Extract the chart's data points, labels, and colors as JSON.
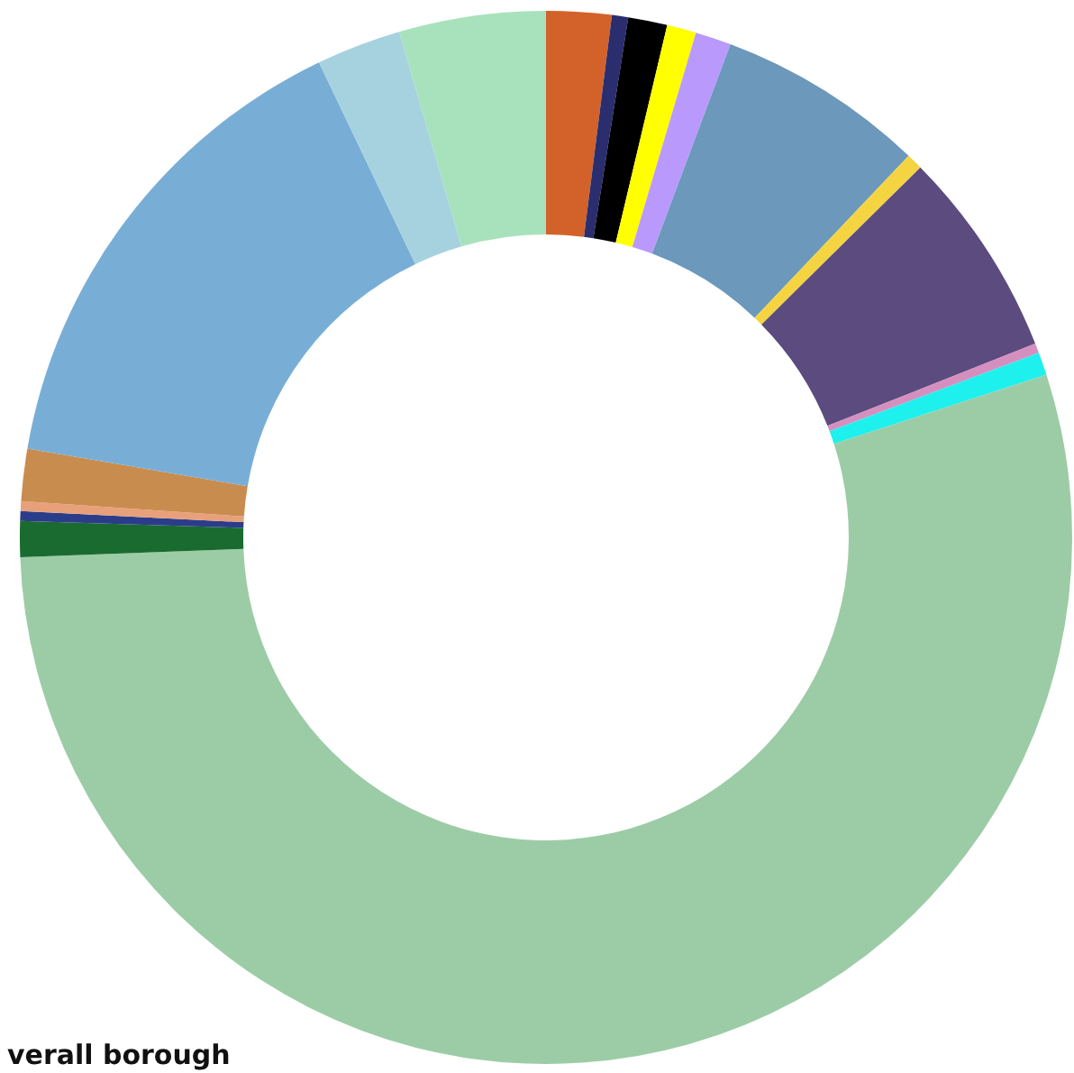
{
  "chart_data": {
    "type": "donut",
    "categories": [
      null,
      null,
      null,
      null,
      null,
      null,
      null,
      null,
      null,
      null,
      null,
      null,
      null,
      null,
      null,
      null,
      null,
      null
    ],
    "values": [
      2.0,
      0.5,
      1.2,
      0.9,
      1.1,
      6.4,
      0.5,
      6.4,
      0.3,
      0.7,
      54.4,
      1.1,
      0.3,
      0.3,
      1.6,
      15.2,
      2.6,
      4.5
    ],
    "colors": [
      "#d2622a",
      "#2a2d6e",
      "#000000",
      "#ffff00",
      "#b99afc",
      "#6b98bb",
      "#f5d442",
      "#5c4b7f",
      "#d58fbf",
      "#1ef0ee",
      "#9ccca6",
      "#1a6b30",
      "#2b3d8a",
      "#e8a07a",
      "#c88d4e",
      "#78aed6",
      "#a6d2e0",
      "#a8e2bc"
    ],
    "annotations": [
      "verall borough"
    ]
  }
}
